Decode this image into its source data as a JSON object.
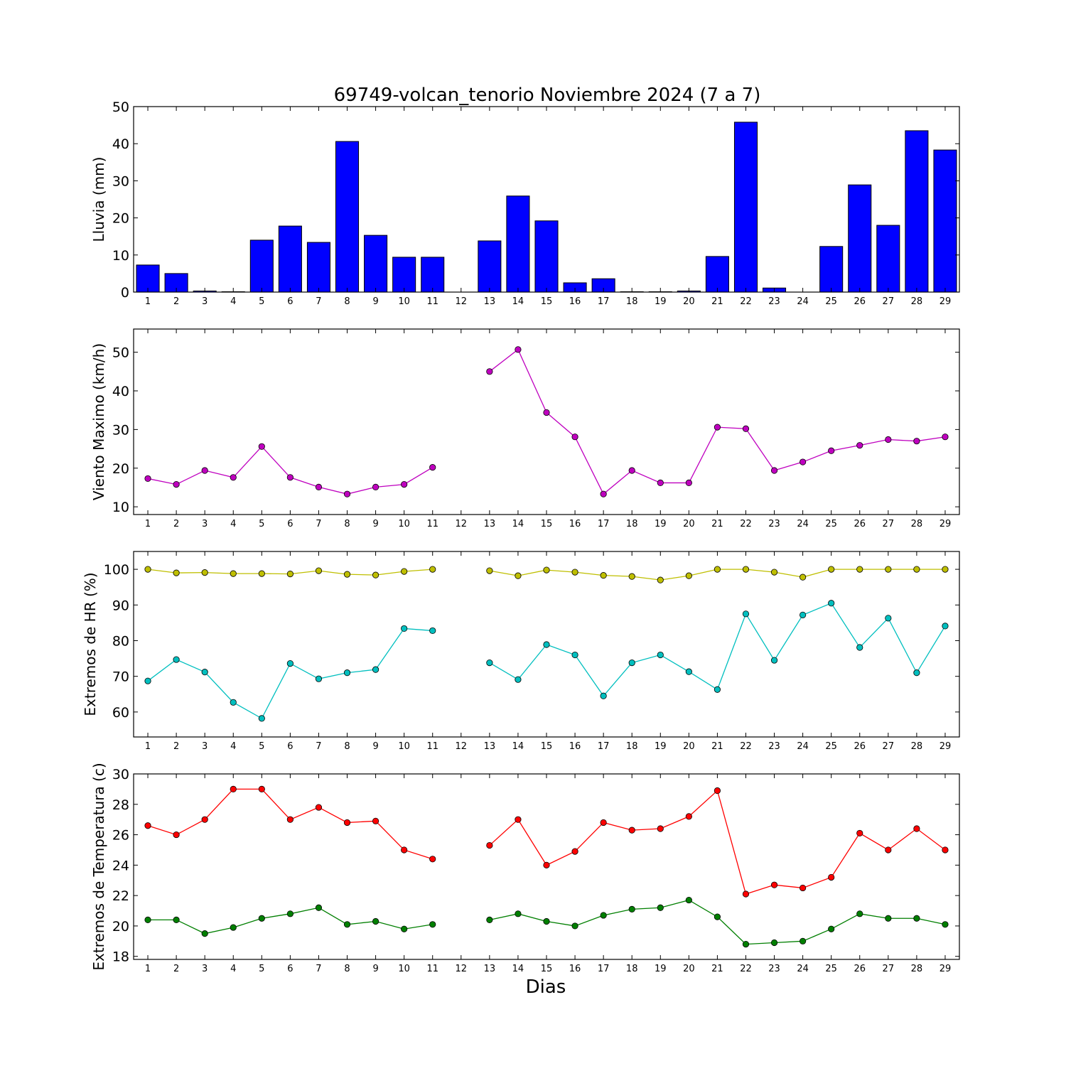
{
  "figure": {
    "title": "69749-volcan_tenorio Noviembre 2024  (7 a 7)",
    "xlabel": "Dias"
  },
  "chart_data": [
    {
      "type": "bar",
      "ylabel": "Lluvia (mm)",
      "xlim": [
        0.5,
        29.5
      ],
      "ylim": [
        0,
        50
      ],
      "yticks": [
        0,
        10,
        20,
        30,
        40,
        50
      ],
      "grid": false,
      "color": "#0000ff",
      "categories": [
        1,
        2,
        3,
        4,
        5,
        6,
        7,
        8,
        9,
        10,
        11,
        12,
        13,
        14,
        15,
        16,
        17,
        18,
        19,
        20,
        21,
        22,
        23,
        24,
        25,
        26,
        27,
        28,
        29
      ],
      "values": [
        7.3,
        5.0,
        0.3,
        0.1,
        14.0,
        17.8,
        13.4,
        40.6,
        15.3,
        9.4,
        9.4,
        0,
        13.8,
        25.9,
        19.2,
        2.5,
        3.6,
        0.1,
        0.1,
        0.3,
        9.6,
        45.8,
        1.1,
        0,
        12.3,
        28.9,
        18.0,
        43.5,
        38.3
      ]
    },
    {
      "type": "line",
      "ylabel": "Viento Maximo (km/h)",
      "xlim": [
        0.5,
        29.5
      ],
      "ylim": [
        8,
        56
      ],
      "yticks": [
        10,
        20,
        30,
        40,
        50
      ],
      "grid": false,
      "x": [
        1,
        2,
        3,
        4,
        5,
        6,
        7,
        8,
        9,
        10,
        11,
        12,
        13,
        14,
        15,
        16,
        17,
        18,
        19,
        20,
        21,
        22,
        23,
        24,
        25,
        26,
        27,
        28,
        29
      ],
      "series": [
        {
          "color": "#bf00bf",
          "values": [
            17.3,
            15.8,
            19.4,
            17.6,
            25.6,
            17.6,
            15.1,
            13.3,
            15.1,
            15.8,
            20.2,
            null,
            45.0,
            50.7,
            34.4,
            28.1,
            13.3,
            19.4,
            16.2,
            16.2,
            30.6,
            30.2,
            19.4,
            21.6,
            24.5,
            25.9,
            27.4,
            27.0,
            28.1
          ]
        }
      ]
    },
    {
      "type": "line",
      "ylabel": "Extremos de HR (%)",
      "xlim": [
        0.5,
        29.5
      ],
      "ylim": [
        53,
        105
      ],
      "yticks": [
        60,
        70,
        80,
        90,
        100
      ],
      "grid": false,
      "x": [
        1,
        2,
        3,
        4,
        5,
        6,
        7,
        8,
        9,
        10,
        11,
        12,
        13,
        14,
        15,
        16,
        17,
        18,
        19,
        20,
        21,
        22,
        23,
        24,
        25,
        26,
        27,
        28,
        29
      ],
      "series": [
        {
          "color": "#bfbf00",
          "values": [
            100,
            99,
            99.1,
            98.8,
            98.8,
            98.7,
            99.6,
            98.6,
            98.4,
            99.4,
            100,
            null,
            99.6,
            98.2,
            99.8,
            99.2,
            98.3,
            98.0,
            97.0,
            98.2,
            100,
            100,
            99.2,
            97.8,
            100,
            100,
            100,
            100,
            100
          ]
        },
        {
          "color": "#00bfbf",
          "values": [
            68.7,
            74.7,
            71.2,
            62.7,
            58.2,
            73.6,
            69.3,
            71.0,
            71.9,
            83.4,
            82.8,
            null,
            73.8,
            69.1,
            78.9,
            76.0,
            64.5,
            73.8,
            76.0,
            71.3,
            66.3,
            87.5,
            74.5,
            87.2,
            90.5,
            78.1,
            86.3,
            71.0,
            84.1
          ]
        }
      ]
    },
    {
      "type": "line",
      "ylabel": "Extremos de Temperatura (c)",
      "xlim": [
        0.5,
        29.5
      ],
      "ylim": [
        17.8,
        30
      ],
      "yticks": [
        18,
        20,
        22,
        24,
        26,
        28,
        30
      ],
      "grid": false,
      "x": [
        1,
        2,
        3,
        4,
        5,
        6,
        7,
        8,
        9,
        10,
        11,
        12,
        13,
        14,
        15,
        16,
        17,
        18,
        19,
        20,
        21,
        22,
        23,
        24,
        25,
        26,
        27,
        28,
        29
      ],
      "series": [
        {
          "color": "#ff0000",
          "values": [
            26.6,
            26.0,
            27.0,
            29.0,
            29.0,
            27.0,
            27.8,
            26.8,
            26.9,
            25.0,
            24.4,
            null,
            25.3,
            27.0,
            24.0,
            24.9,
            26.8,
            26.3,
            26.4,
            27.2,
            28.9,
            22.1,
            22.7,
            22.5,
            23.2,
            26.1,
            25.0,
            26.4,
            25.0
          ]
        },
        {
          "color": "#007f00",
          "values": [
            20.4,
            20.4,
            19.5,
            19.9,
            20.5,
            20.8,
            21.2,
            20.1,
            20.3,
            19.8,
            20.1,
            null,
            20.4,
            20.8,
            20.3,
            20.0,
            20.7,
            21.1,
            21.2,
            21.7,
            20.6,
            18.8,
            18.9,
            19.0,
            19.8,
            20.8,
            20.5,
            20.5,
            20.1
          ]
        }
      ]
    }
  ]
}
